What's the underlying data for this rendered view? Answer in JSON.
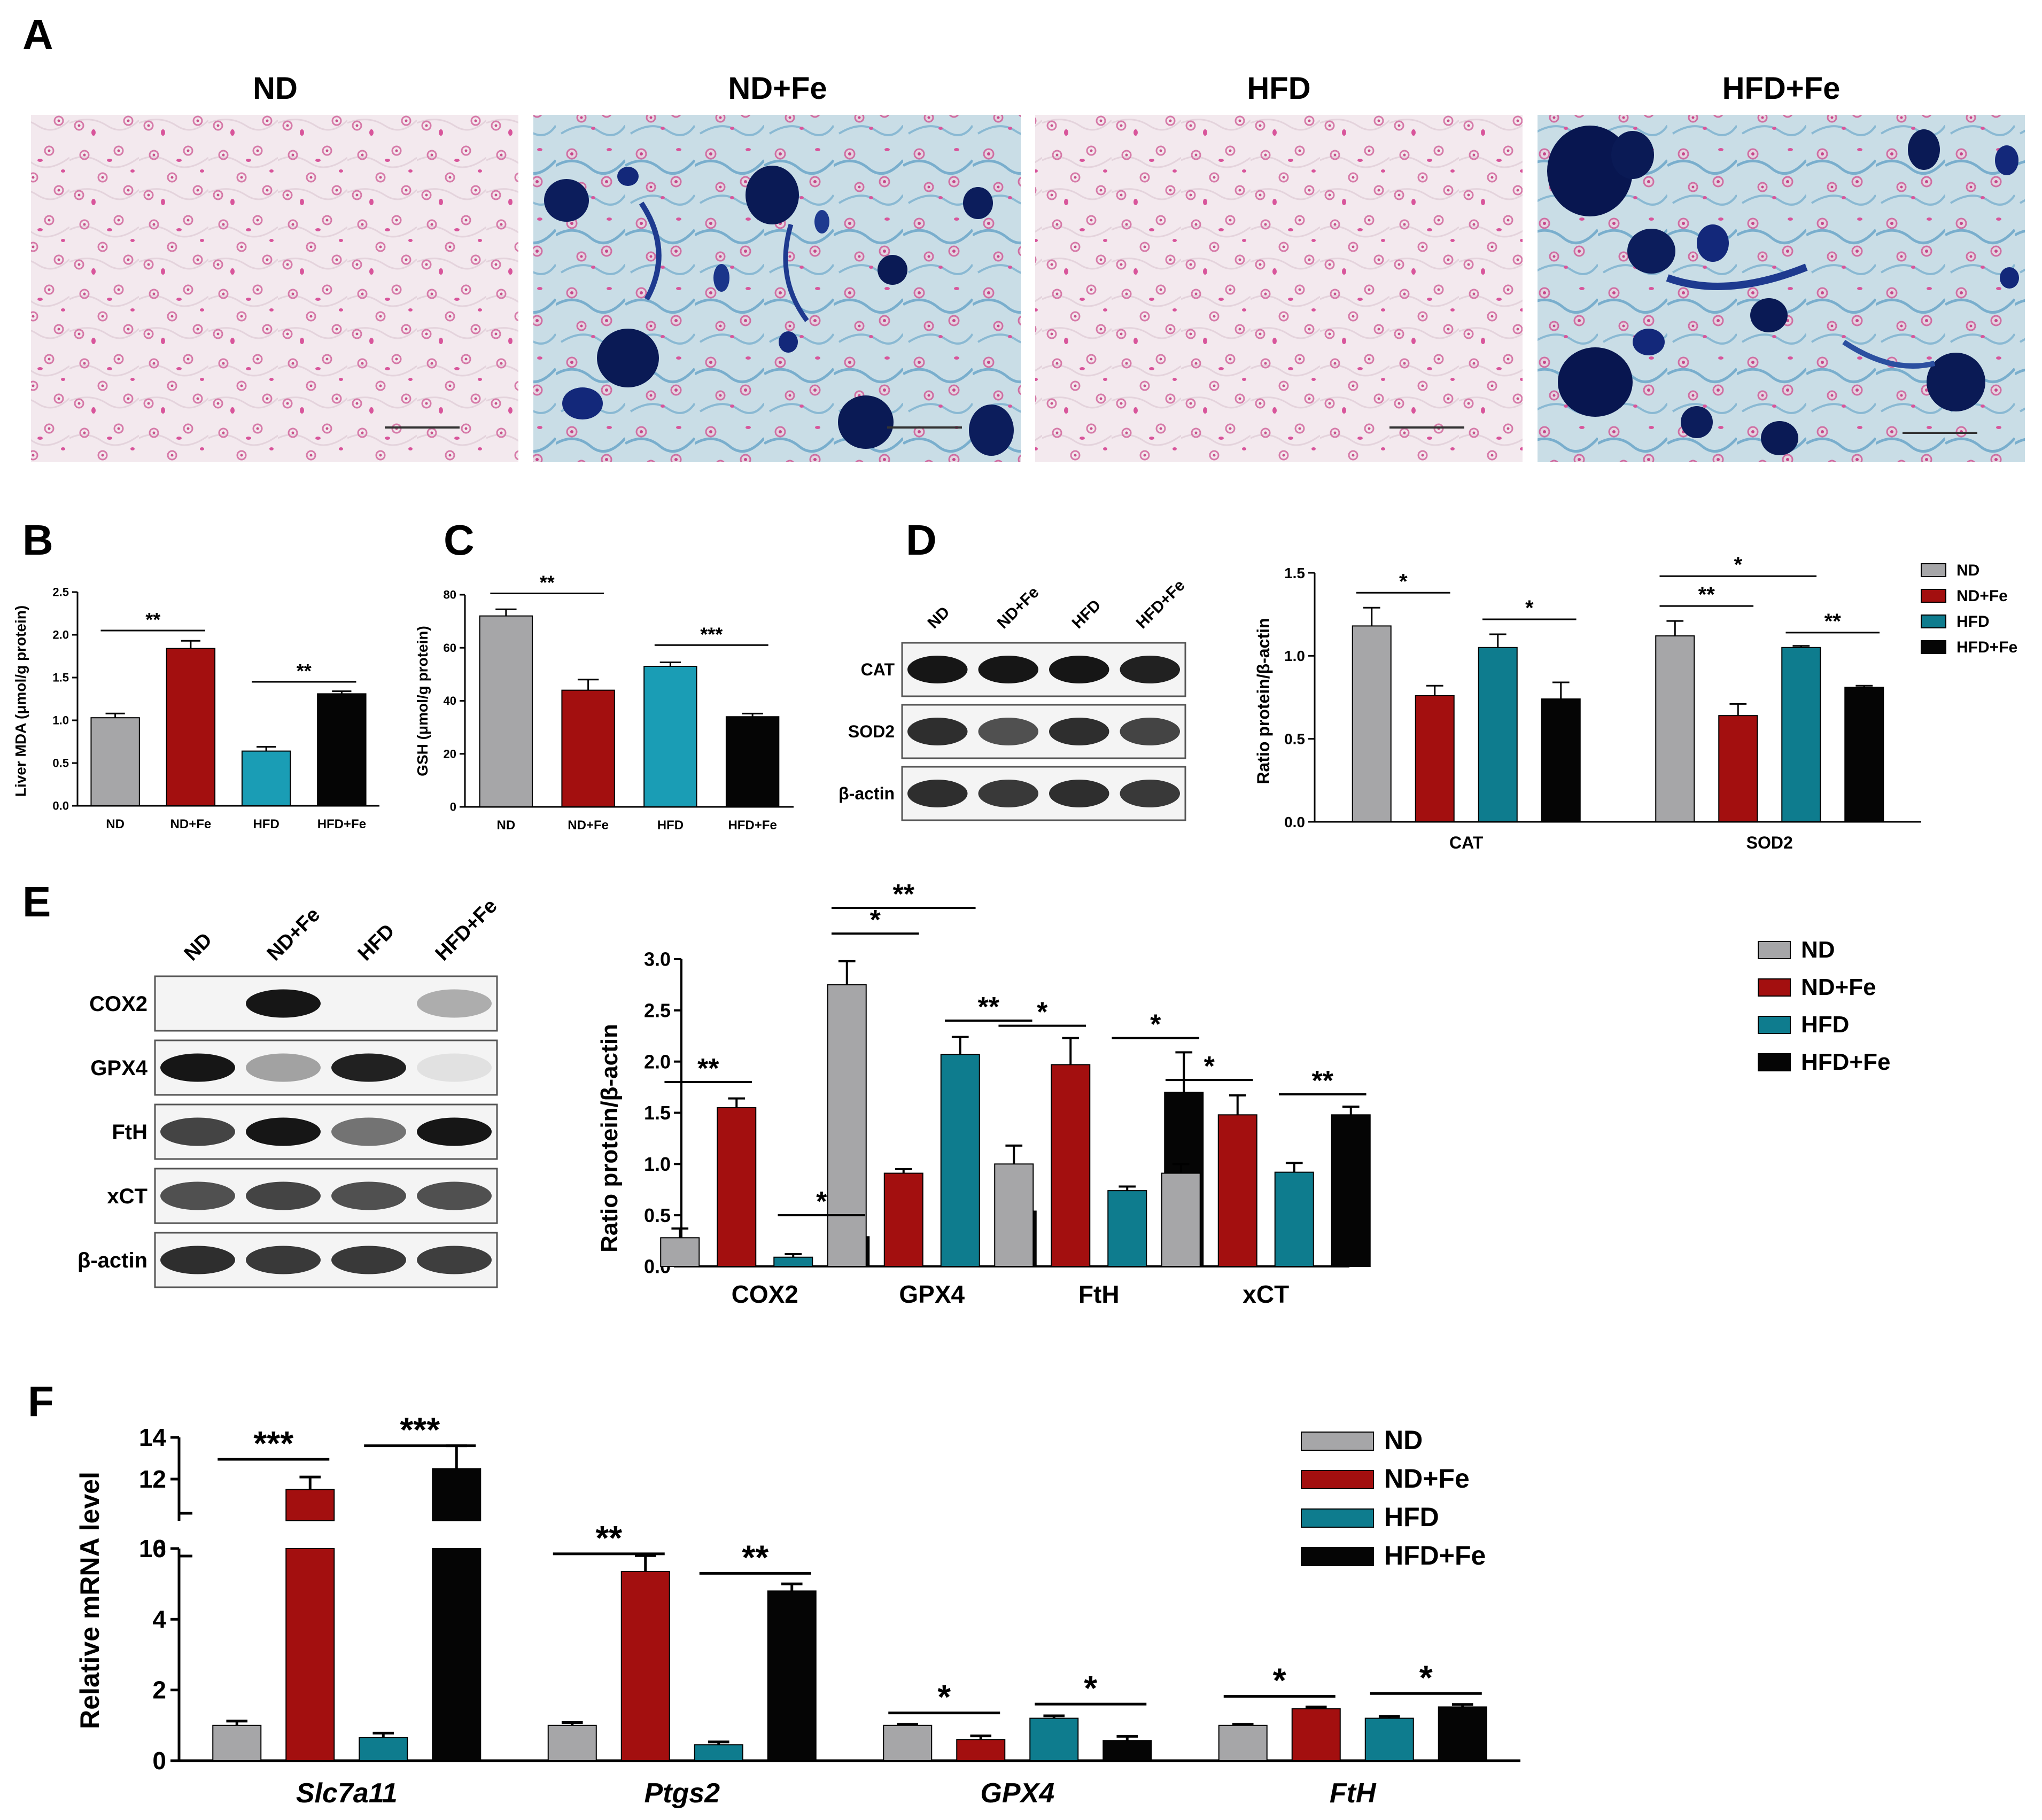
{
  "panel_labels": [
    "A",
    "B",
    "C",
    "D",
    "E",
    "F"
  ],
  "colors": {
    "ND": "#a6a6a8",
    "ND+Fe": "#a30f0f",
    "HFD_B": "#1a9db5",
    "HFD": "#0e7c8e",
    "HFD+Fe": "#050505"
  },
  "panel_a": {
    "titles": [
      "ND",
      "ND+Fe",
      "HFD",
      "HFD+Fe"
    ]
  },
  "blots": {
    "d": {
      "lanes": [
        "ND",
        "ND+Fe",
        "HFD",
        "HFD+Fe"
      ],
      "rows": [
        "CAT",
        "SOD2",
        "β-actin"
      ]
    },
    "e": {
      "lanes": [
        "ND",
        "ND+Fe",
        "HFD",
        "HFD+Fe"
      ],
      "rows": [
        "COX2",
        "GPX4",
        "FtH",
        "xCT",
        "β-actin"
      ]
    }
  },
  "legend": [
    "ND",
    "ND+Fe",
    "HFD",
    "HFD+Fe"
  ],
  "chart_data": [
    {
      "id": "B",
      "type": "bar",
      "categories": [
        "ND",
        "ND+Fe",
        "HFD",
        "HFD+Fe"
      ],
      "values": [
        1.03,
        1.84,
        0.64,
        1.31
      ],
      "errors": [
        0.05,
        0.09,
        0.05,
        0.03
      ],
      "ylabel": "Liver MDA (μmol/g protein)",
      "ylim": [
        0,
        2.5
      ],
      "yticks": [
        "0.0",
        "0.5",
        "1.0",
        "1.5",
        "2.0",
        "2.5"
      ],
      "significance": [
        "**",
        "**"
      ]
    },
    {
      "id": "C",
      "type": "bar",
      "categories": [
        "ND",
        "ND+Fe",
        "HFD",
        "HFD+Fe"
      ],
      "values": [
        72,
        44,
        53,
        34
      ],
      "errors": [
        2.5,
        4,
        1.5,
        1.2
      ],
      "ylabel": "GSH (μmol/g protein)",
      "ylim": [
        0,
        80
      ],
      "yticks": [
        "0",
        "20",
        "40",
        "60",
        "80"
      ],
      "significance": [
        "**",
        "***"
      ]
    },
    {
      "id": "D",
      "type": "bar",
      "categories": [
        "CAT",
        "SOD2"
      ],
      "series": [
        {
          "name": "ND",
          "values": [
            1.18,
            1.12
          ],
          "errors": [
            0.11,
            0.09
          ]
        },
        {
          "name": "ND+Fe",
          "values": [
            0.76,
            0.64
          ],
          "errors": [
            0.06,
            0.07
          ]
        },
        {
          "name": "HFD",
          "values": [
            1.05,
            1.05
          ],
          "errors": [
            0.08,
            0.01
          ]
        },
        {
          "name": "HFD+Fe",
          "values": [
            0.74,
            0.81
          ],
          "errors": [
            0.1,
            0.01
          ]
        }
      ],
      "ylabel": "Ratio protein/β-actin",
      "ylim": [
        0,
        1.5
      ],
      "yticks": [
        "0.0",
        "0.5",
        "1.0",
        "1.5"
      ],
      "significance": [
        "*",
        "*",
        "*",
        "**",
        "**"
      ]
    },
    {
      "id": "E",
      "type": "bar",
      "categories": [
        "COX2",
        "GPX4",
        "FtH",
        "xCT"
      ],
      "series": [
        {
          "name": "ND",
          "values": [
            0.28,
            2.75,
            1.0,
            0.91
          ],
          "errors": [
            0.09,
            0.23,
            0.18,
            0.09
          ]
        },
        {
          "name": "ND+Fe",
          "values": [
            1.55,
            0.91,
            1.97,
            1.48
          ],
          "errors": [
            0.09,
            0.04,
            0.26,
            0.19
          ]
        },
        {
          "name": "HFD",
          "values": [
            0.09,
            2.07,
            0.74,
            0.92
          ],
          "errors": [
            0.03,
            0.17,
            0.04,
            0.09
          ]
        },
        {
          "name": "HFD+Fe",
          "values": [
            0.29,
            0.54,
            1.7,
            1.48
          ],
          "errors": [
            0.09,
            0.14,
            0.39,
            0.08
          ]
        }
      ],
      "ylabel": "Ratio protein/β-actin",
      "ylim": [
        0,
        3.0
      ],
      "yticks": [
        "0.0",
        "0.5",
        "1.0",
        "1.5",
        "2.0",
        "2.5",
        "3.0"
      ],
      "significance": [
        "**",
        "*",
        "**",
        "*",
        "**",
        "*",
        "*",
        "*",
        "**"
      ]
    },
    {
      "id": "F",
      "type": "bar",
      "categories": [
        "Slc7a11",
        "Ptgs2",
        "GPX4",
        "FtH"
      ],
      "series": [
        {
          "name": "ND",
          "values": [
            1.0,
            1.0,
            1.0,
            1.0
          ],
          "errors": [
            0.12,
            0.08,
            0.03,
            0.03
          ]
        },
        {
          "name": "ND+Fe",
          "values": [
            11.5,
            5.35,
            0.6,
            1.47
          ],
          "errors": [
            0.6,
            0.45,
            0.1,
            0.05
          ]
        },
        {
          "name": "HFD",
          "values": [
            0.65,
            0.45,
            1.2,
            1.2
          ],
          "errors": [
            0.13,
            0.08,
            0.07,
            0.05
          ]
        },
        {
          "name": "HFD+Fe",
          "values": [
            12.5,
            4.8,
            0.57,
            1.52
          ],
          "errors": [
            1.1,
            0.2,
            0.12,
            0.07
          ]
        }
      ],
      "ylabel": "Relative mRNA level",
      "ylim": [
        0,
        14
      ],
      "axis_break": [
        6,
        10
      ],
      "yticks": [
        "0",
        "2",
        "4",
        "6",
        "10",
        "12",
        "14"
      ],
      "significance": [
        "***",
        "***",
        "**",
        "**",
        "*",
        "*",
        "*",
        "*"
      ]
    }
  ]
}
